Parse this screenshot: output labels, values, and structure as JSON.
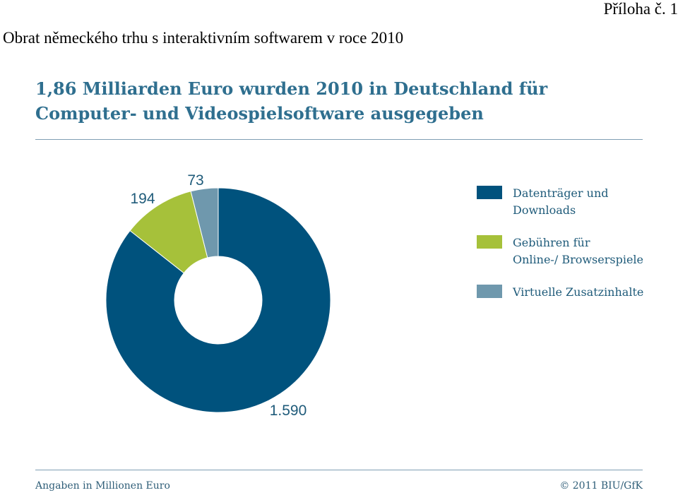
{
  "document": {
    "title": "Obrat německého trhu s interaktivním softwarem v roce 2010",
    "annex": "Příloha č. 1"
  },
  "chart_data": {
    "type": "pie",
    "variant": "donut",
    "title": "1,86 Milliarden Euro wurden 2010 in Deutschland für Computer- und Videospielsoftware ausgegeben",
    "unit": "Millionen Euro",
    "slices": [
      {
        "name": "Datenträger und Downloads",
        "value": 1590,
        "label": "1.590",
        "color": "#00527d"
      },
      {
        "name": "Gebühren für Online-/ Browserspiele",
        "value": 194,
        "label": "194",
        "color": "#a6c13a"
      },
      {
        "name": "Virtuelle Zusatzinhalte",
        "value": 73,
        "label": "73",
        "color": "#6f98ad"
      }
    ],
    "legend": [
      {
        "label": "Datenträger und\nDownloads",
        "color": "#00527d"
      },
      {
        "label": "Gebühren für\nOnline-/ Browserspiele",
        "color": "#a6c13a"
      },
      {
        "label": "Virtuelle Zusatzinhalte",
        "color": "#6f98ad"
      }
    ],
    "legend_position": "right"
  },
  "footer": {
    "note": "Angaben in Millionen Euro",
    "source": "© 2011 BIU/GfK"
  }
}
